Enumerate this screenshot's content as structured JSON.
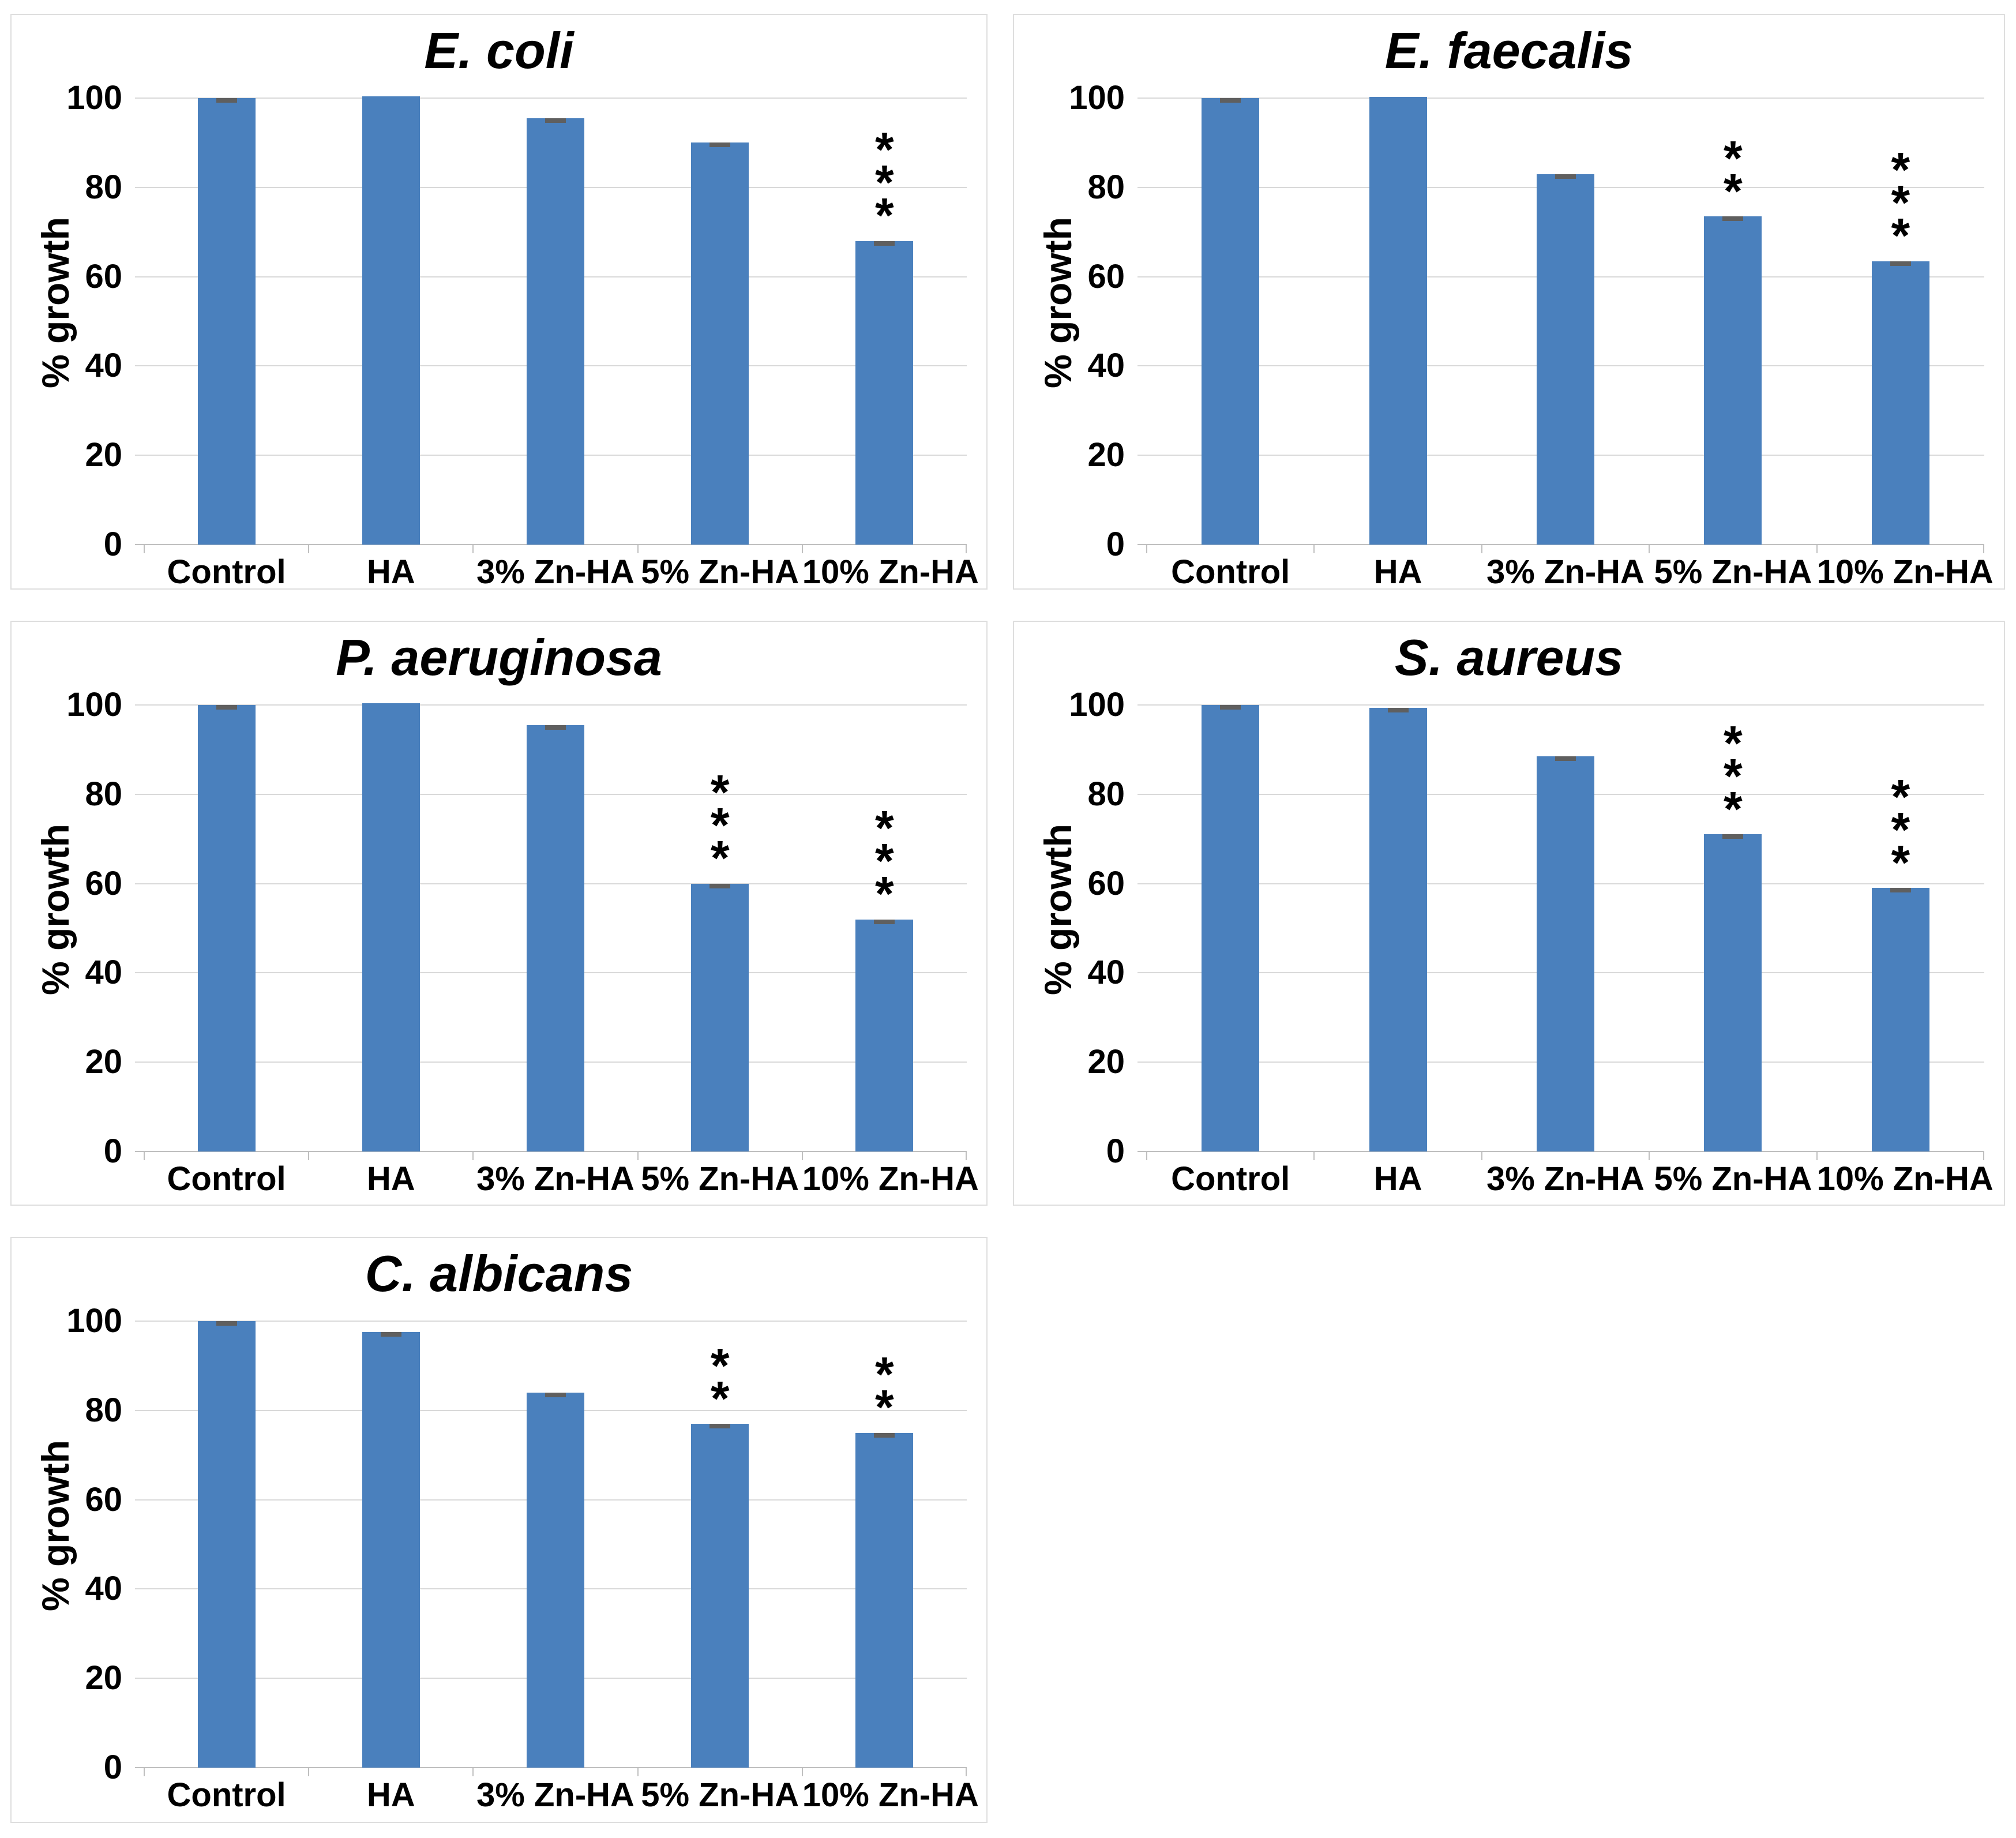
{
  "figure": {
    "background": "#ffffff",
    "layout": "2x3 grid of panels, fifth panel bottom-left, bottom-right cell empty"
  },
  "colors": {
    "bar_fill": "#4A80BD",
    "gridline": "#D9D9D9",
    "axis_line": "#BFBFBF",
    "error_cap": "#5F5F5F",
    "text": "#000000",
    "panel_border": "#DEDEDE"
  },
  "chart_data": [
    {
      "type": "bar",
      "title": "E. coli",
      "xlabel": "",
      "ylabel": "% growth",
      "categories": [
        "Control",
        "HA",
        "3% Zn-HA",
        "5% Zn-HA",
        "10% Zn-HA"
      ],
      "values": [
        100,
        100.4,
        95.5,
        90,
        68
      ],
      "significance": [
        "",
        "",
        "",
        "",
        "***"
      ],
      "error_caps": [
        true,
        false,
        true,
        true,
        true
      ],
      "yticks": [
        0,
        20,
        40,
        60,
        80,
        100
      ],
      "ytick_labels": [
        "0",
        "20",
        "40",
        "60",
        "80",
        "100"
      ],
      "ylim": [
        0,
        110
      ],
      "grid": true,
      "legend": false
    },
    {
      "type": "bar",
      "title": "E. faecalis",
      "xlabel": "",
      "ylabel": "% growth",
      "categories": [
        "Control",
        "HA",
        "3% Zn-HA",
        "5% Zn-HA",
        "10% Zn-HA"
      ],
      "values": [
        100,
        100.3,
        83,
        73.5,
        63.5
      ],
      "significance": [
        "",
        "",
        "",
        "**",
        "***"
      ],
      "error_caps": [
        true,
        false,
        true,
        true,
        true
      ],
      "yticks": [
        0,
        20,
        40,
        60,
        80,
        100
      ],
      "ytick_labels": [
        "0",
        "20",
        "40",
        "60",
        "80",
        "100"
      ],
      "ylim": [
        0,
        110
      ],
      "grid": true,
      "legend": false
    },
    {
      "type": "bar",
      "title": "P. aeruginosa",
      "xlabel": "",
      "ylabel": "% growth",
      "categories": [
        "Control",
        "HA",
        "3% Zn-HA",
        "5% Zn-HA",
        "10% Zn-HA"
      ],
      "values": [
        100,
        100.4,
        95.5,
        60,
        52
      ],
      "significance": [
        "",
        "",
        "",
        "***",
        "***"
      ],
      "error_caps": [
        true,
        false,
        true,
        true,
        true
      ],
      "yticks": [
        0,
        20,
        40,
        60,
        80,
        100
      ],
      "ytick_labels": [
        "0",
        "20",
        "40",
        "60",
        "80",
        "100"
      ],
      "ylim": [
        0,
        110
      ],
      "grid": true,
      "legend": false
    },
    {
      "type": "bar",
      "title": "S. aureus",
      "xlabel": "",
      "ylabel": "% growth",
      "categories": [
        "Control",
        "HA",
        "3% Zn-HA",
        "5% Zn-HA",
        "10% Zn-HA"
      ],
      "values": [
        100,
        99.4,
        88.5,
        71,
        59
      ],
      "significance": [
        "",
        "",
        "",
        "***",
        "***"
      ],
      "error_caps": [
        true,
        true,
        true,
        true,
        true
      ],
      "yticks": [
        0,
        20,
        40,
        60,
        80,
        100
      ],
      "ytick_labels": [
        "0",
        "20",
        "40",
        "60",
        "80",
        "100"
      ],
      "ylim": [
        0,
        110
      ],
      "grid": true,
      "legend": false
    },
    {
      "type": "bar",
      "title": "C. albicans",
      "xlabel": "",
      "ylabel": "% growth",
      "categories": [
        "Control",
        "HA",
        "3% Zn-HA",
        "5% Zn-HA",
        "10% Zn-HA"
      ],
      "values": [
        100,
        97.5,
        84,
        77,
        75
      ],
      "significance": [
        "",
        "",
        "",
        "**",
        "**"
      ],
      "error_caps": [
        true,
        true,
        true,
        true,
        true
      ],
      "yticks": [
        0,
        20,
        40,
        60,
        80,
        100
      ],
      "ytick_labels": [
        "0",
        "20",
        "40",
        "60",
        "80",
        "100"
      ],
      "ylim": [
        0,
        110
      ],
      "grid": true,
      "legend": false
    }
  ]
}
